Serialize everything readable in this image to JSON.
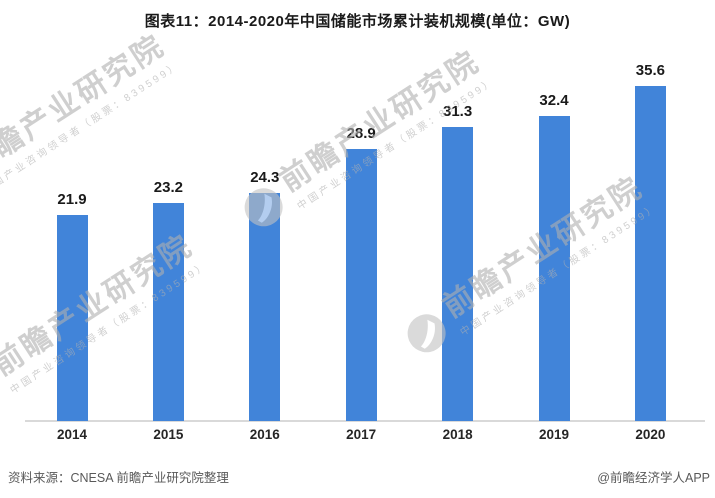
{
  "title": "图表11：2014-2020年中国储能市场累计装机规模(单位：GW)",
  "chart_data": {
    "type": "bar",
    "title": "图表11：2014-2020年中国储能市场累计装机规模(单位：GW)",
    "categories": [
      "2014",
      "2015",
      "2016",
      "2017",
      "2018",
      "2019",
      "2020"
    ],
    "values": [
      21.9,
      23.2,
      24.3,
      28.9,
      31.3,
      32.4,
      35.6
    ],
    "unit": "GW",
    "xlabel": "",
    "ylabel": "",
    "ylim": [
      0,
      38
    ],
    "grid": false,
    "legend": false,
    "value_labels": true,
    "bar_color": "#4184d9",
    "axis_line_color": "#d9d9d9"
  },
  "watermark": {
    "main": "前瞻产业研究院",
    "sub": "中国产业咨询领导者（股票：839599）",
    "logo": "qianzhan-bird-logo",
    "color": "#d0d0d0"
  },
  "footer": {
    "source": "资料来源：CNESA 前瞻产业研究院整理",
    "credit": "@前瞻经济学人APP"
  }
}
